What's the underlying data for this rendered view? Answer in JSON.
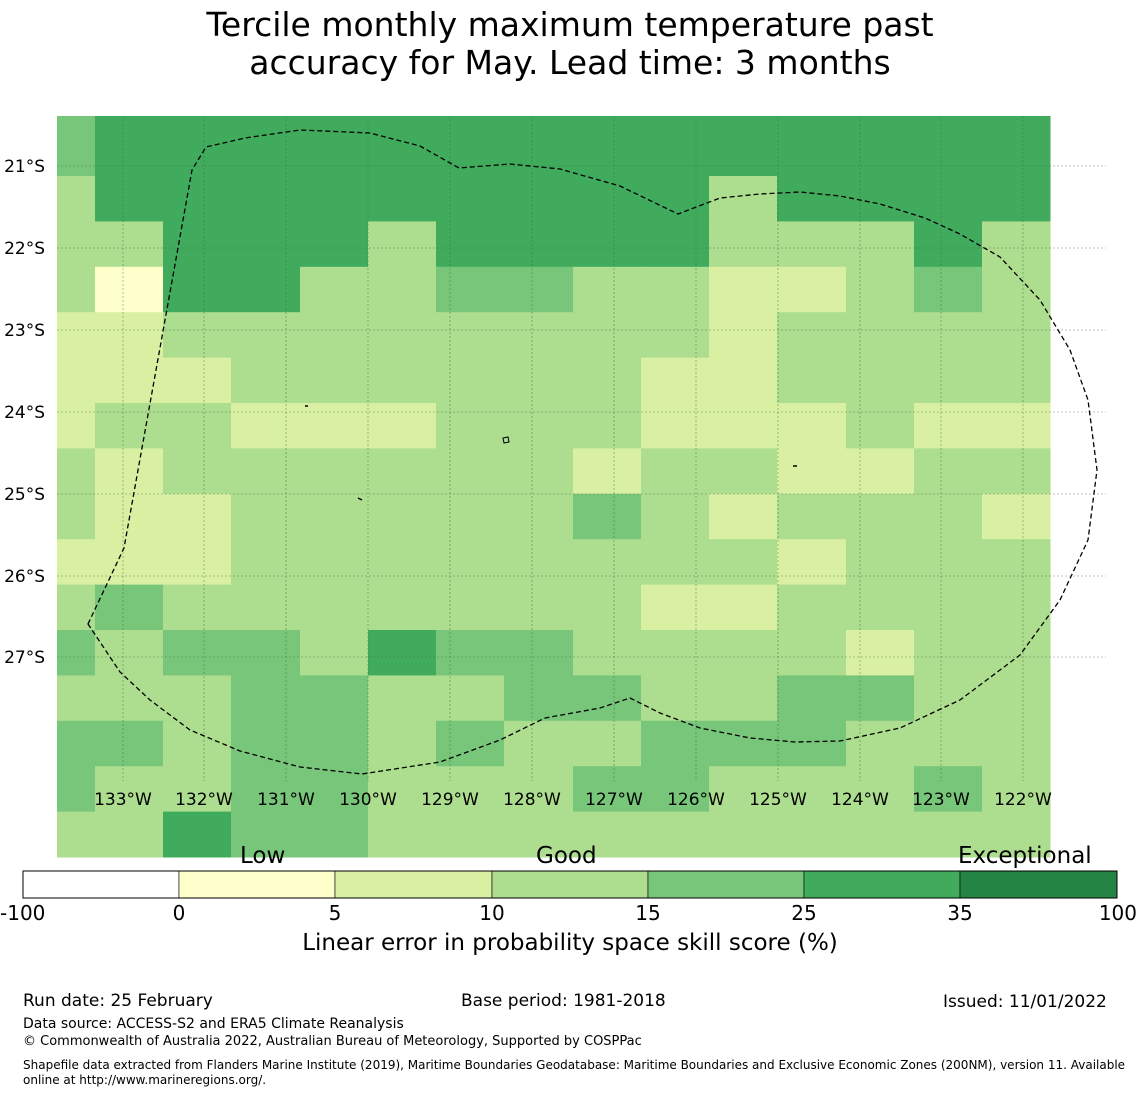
{
  "title": {
    "line1": "Tercile monthly maximum temperature past",
    "line2": "accuracy for May. Lead time: 3 months"
  },
  "map": {
    "lon_labels": [
      "133°W",
      "132°W",
      "131°W",
      "130°W",
      "129°W",
      "128°W",
      "127°W",
      "126°W",
      "125°W",
      "124°W",
      "123°W",
      "122°W"
    ],
    "lat_labels": [
      "21°S",
      "22°S",
      "23°S",
      "24°S",
      "25°S",
      "26°S",
      "27°S"
    ],
    "colors": {
      "lvl1": "#ffffcc",
      "lvl2": "#d9f0a3",
      "lvl3": "#addd8e",
      "lvl4": "#78c679",
      "lvl5": "#41ab5d",
      "lvl6": "#238443"
    },
    "grid_values": [
      "455555555555555",
      "355555555535555",
      "335553555533353",
      "315533443322343",
      "223333333323333",
      "222333333223333",
      "233222333222322",
      "323333332332233",
      "322333334323332",
      "222333333332333",
      "343333333223333",
      "434435443333233",
      "333443344334433",
      "443443433444333",
      "433443334433343",
      "335443333333333",
      "345444334433343"
    ]
  },
  "colorbar": {
    "category_labels": [
      "Low",
      "Good",
      "Exceptional"
    ],
    "ticks": [
      "-100",
      "0",
      "5",
      "10",
      "15",
      "25",
      "35",
      "100"
    ],
    "colors": [
      "#ffffff",
      "#ffffcc",
      "#d9f0a3",
      "#addd8e",
      "#78c679",
      "#41ab5d",
      "#238443"
    ],
    "title": "Linear error in probability space skill score (%)"
  },
  "footer": {
    "run_date": "Run date: 25 February",
    "base_period": "Base period: 1981-2018",
    "issued": "Issued: 11/01/2022",
    "data_source": "Data source: ACCESS-S2 and ERA5 Climate Reanalysis",
    "copyright": "© Commonwealth of Australia 2022, Australian Bureau of Meteorology, Supported by COSPPac",
    "shapefile_line1": "Shapefile data extracted from Flanders Marine Institute (2019), Maritime Boundaries Geodatabase: Maritime Boundaries and Exclusive Economic Zones (200NM), version 11. Available",
    "shapefile_line2": "online at http://www.marineregions.org/."
  }
}
